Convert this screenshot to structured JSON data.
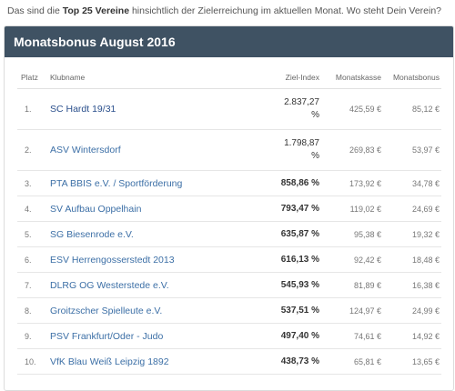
{
  "intro": {
    "prefix": "Das sind die ",
    "highlight": "Top 25 Vereine",
    "suffix": " hinsichtlich der Zielerreichung im aktuellen Monat. Wo steht Dein Verein?"
  },
  "panel": {
    "title": "Monatsbonus August 2016"
  },
  "table": {
    "headers": {
      "platz": "Platz",
      "klub": "Klubname",
      "ziel": "Ziel-Index",
      "kasse": "Monatskasse",
      "bonus": "Monatsbonus"
    },
    "rows": [
      {
        "platz": "1.",
        "klub": "SC Hardt 19/31",
        "ziel": "2.837,27 %",
        "kasse": "425,59 €",
        "bonus": "85,12 €"
      },
      {
        "platz": "2.",
        "klub": "ASV Wintersdorf",
        "ziel": "1.798,87 %",
        "kasse": "269,83 €",
        "bonus": "53,97 €"
      },
      {
        "platz": "3.",
        "klub": "PTA BBIS e.V. / Sportförderung",
        "ziel": "858,86 %",
        "kasse": "173,92 €",
        "bonus": "34,78 €"
      },
      {
        "platz": "4.",
        "klub": "SV Aufbau Oppelhain",
        "ziel": "793,47 %",
        "kasse": "119,02 €",
        "bonus": "24,69 €"
      },
      {
        "platz": "5.",
        "klub": "SG Biesenrode e.V.",
        "ziel": "635,87 %",
        "kasse": "95,38 €",
        "bonus": "19,32 €"
      },
      {
        "platz": "6.",
        "klub": "ESV Herrengosserstedt 2013",
        "ziel": "616,13 %",
        "kasse": "92,42 €",
        "bonus": "18,48 €"
      },
      {
        "platz": "7.",
        "klub": "DLRG OG Westerstede e.V.",
        "ziel": "545,93 %",
        "kasse": "81,89 €",
        "bonus": "16,38 €"
      },
      {
        "platz": "8.",
        "klub": "Groitzscher Spielleute e.V.",
        "ziel": "537,51 %",
        "kasse": "124,97 €",
        "bonus": "24,99 €"
      },
      {
        "platz": "9.",
        "klub": "PSV Frankfurt/Oder - Judo",
        "ziel": "497,40 %",
        "kasse": "74,61 €",
        "bonus": "14,92 €"
      },
      {
        "platz": "10.",
        "klub": "VfK Blau Weiß Leipzig 1892",
        "ziel": "438,73 %",
        "kasse": "65,81 €",
        "bonus": "13,65 €"
      }
    ]
  }
}
